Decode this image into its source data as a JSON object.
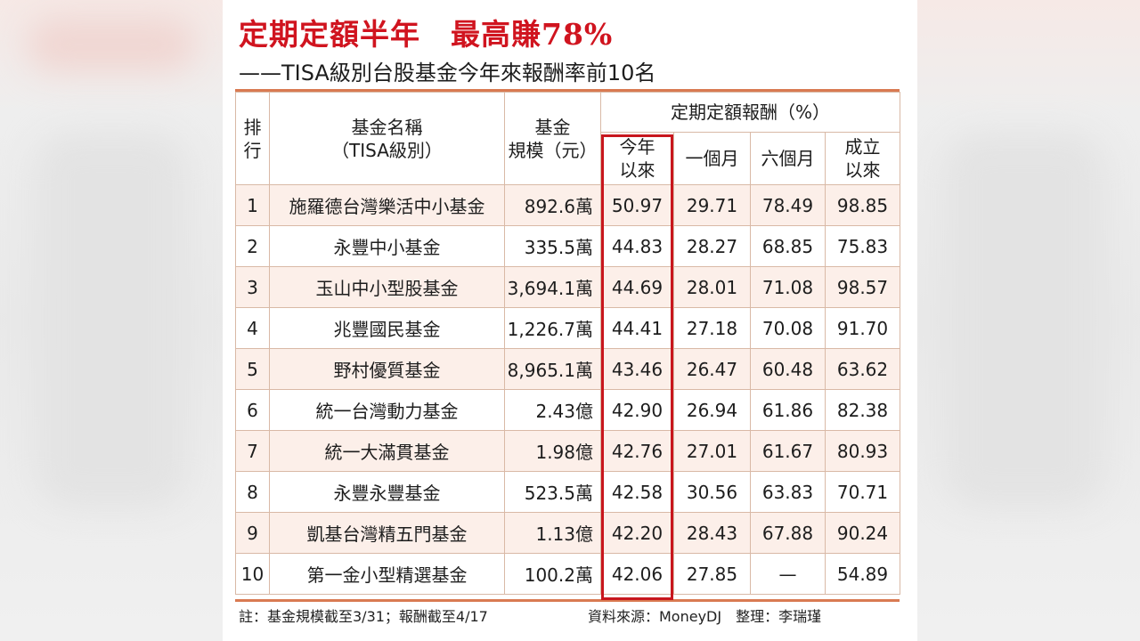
{
  "title": "定期定額半年　最高賺78%",
  "subtitle": "——TISA級別台股基金今年來報酬率前10名",
  "table": {
    "headers": {
      "rank": "排\n行",
      "name": "基金名稱\n（TISA級別）",
      "size": "基金\n規模（元）",
      "group": "定期定額報酬（%）",
      "ytd": "今年\n以來",
      "m1": "一個月",
      "m6": "六個月",
      "inception": "成立\n以來"
    },
    "rows": [
      {
        "rank": "1",
        "name": "施羅德台灣樂活中小基金",
        "size": "892.6萬",
        "ytd": "50.97",
        "m1": "29.71",
        "m6": "78.49",
        "inception": "98.85"
      },
      {
        "rank": "2",
        "name": "永豐中小基金",
        "size": "335.5萬",
        "ytd": "44.83",
        "m1": "28.27",
        "m6": "68.85",
        "inception": "75.83"
      },
      {
        "rank": "3",
        "name": "玉山中小型股基金",
        "size": "3,694.1萬",
        "ytd": "44.69",
        "m1": "28.01",
        "m6": "71.08",
        "inception": "98.57"
      },
      {
        "rank": "4",
        "name": "兆豐國民基金",
        "size": "1,226.7萬",
        "ytd": "44.41",
        "m1": "27.18",
        "m6": "70.08",
        "inception": "91.70"
      },
      {
        "rank": "5",
        "name": "野村優質基金",
        "size": "8,965.1萬",
        "ytd": "43.46",
        "m1": "26.47",
        "m6": "60.48",
        "inception": "63.62"
      },
      {
        "rank": "6",
        "name": "統一台灣動力基金",
        "size": "2.43億",
        "ytd": "42.90",
        "m1": "26.94",
        "m6": "61.86",
        "inception": "82.38"
      },
      {
        "rank": "7",
        "name": "統一大滿貫基金",
        "size": "1.98億",
        "ytd": "42.76",
        "m1": "27.01",
        "m6": "61.67",
        "inception": "80.93"
      },
      {
        "rank": "8",
        "name": "永豐永豐基金",
        "size": "523.5萬",
        "ytd": "42.58",
        "m1": "30.56",
        "m6": "63.83",
        "inception": "70.71"
      },
      {
        "rank": "9",
        "name": "凱基台灣精五門基金",
        "size": "1.13億",
        "ytd": "42.20",
        "m1": "28.43",
        "m6": "67.88",
        "inception": "90.24"
      },
      {
        "rank": "10",
        "name": "第一金小型精選基金",
        "size": "100.2萬",
        "ytd": "42.06",
        "m1": "27.85",
        "m6": "—",
        "inception": "54.89"
      }
    ]
  },
  "footer": {
    "note": "註：基金規模截至3/31；報酬截至4/17",
    "source": "資料來源：MoneyDJ　整理：李瑞瑾"
  },
  "colors": {
    "title_red": "#d0141f",
    "rule_orange": "#d97a52",
    "row_tint": "#fcefe9",
    "highlight_red": "#c8161d"
  }
}
